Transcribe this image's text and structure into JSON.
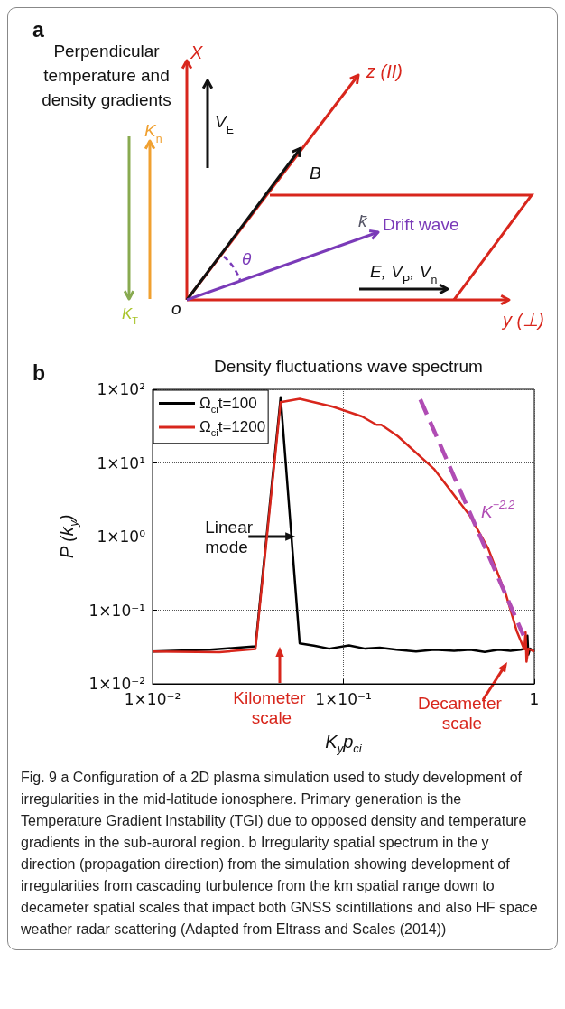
{
  "chart_data": [
    {
      "type": "other",
      "annotations": [
        "a",
        "Perpendicular temperature and density gradients",
        "X",
        "z (II)",
        "V$_{E}$",
        "K$_{n}$",
        "K$_{T}$",
        "B",
        "k̄",
        "Drift wave",
        "θ",
        "E, V$_{P}$, V$_{n}$",
        "o",
        "y (⊥)"
      ]
    },
    {
      "type": "line",
      "title": "Density fluctuations wave spectrum",
      "xlabel": "K$_{y}$p$_{ci}$",
      "ylabel": "P (k$_{y}$)",
      "log": "xy",
      "grid": true,
      "legend": "top left",
      "marker": "none",
      "line_style": "solid",
      "xlim": [
        0.01,
        1
      ],
      "xticks": [
        {
          "value": 0.01,
          "label": "1×10⁻²"
        },
        {
          "value": 0.1,
          "label": "1×10⁻¹"
        },
        1
      ],
      "ylim": [
        0.01,
        100
      ],
      "yticks": [
        {
          "value": 0.01,
          "label": "1×10⁻²"
        },
        {
          "value": 0.1,
          "label": "1×10⁻¹"
        },
        {
          "value": 1,
          "label": "1×10⁰"
        },
        {
          "value": 10,
          "label": "1×10¹"
        },
        {
          "value": 100,
          "label": "1×10²"
        }
      ],
      "series": [
        {
          "name": "Ω$_{ci}$t=100",
          "color": "#000000",
          "x": [
            0.01,
            0.02,
            0.0346,
            0.0469,
            0.059,
            0.07,
            0.0843,
            0.107,
            0.13,
            0.155,
            0.19,
            0.24,
            0.3,
            0.38,
            0.461,
            0.55,
            0.65,
            0.75,
            0.847,
            0.9,
            0.92,
            0.93,
            0.95,
            1
          ],
          "values": [
            0.0274,
            0.029,
            0.0324,
            78,
            0.0355,
            0.033,
            0.03,
            0.0332,
            0.03,
            0.031,
            0.029,
            0.0274,
            0.029,
            0.028,
            0.029,
            0.027,
            0.029,
            0.028,
            0.029,
            0.03,
            0.045,
            0.025,
            0.03,
            0.0274
          ]
        },
        {
          "name": "Ω$_{ci}$t=1200",
          "color": "#d8261c",
          "x": [
            0.01,
            0.0224,
            0.0346,
            0.0469,
            0.059,
            0.0881,
            0.125,
            0.149,
            0.158,
            0.193,
            0.298,
            0.461,
            0.573,
            0.713,
            0.811,
            0.885,
            0.9,
            0.91,
            0.93,
            1
          ],
          "values": [
            0.0274,
            0.0268,
            0.0297,
            67,
            74.5,
            58,
            42.8,
            33,
            33,
            23,
            8.3,
            1.9,
            0.69,
            0.158,
            0.051,
            0.0295,
            0.05,
            0.02,
            0.03,
            0.0274
          ]
        },
        {
          "color": "#b04cb4",
          "line_style": "dashed",
          "x": [
            0.253,
            0.877
          ],
          "values": [
            72.8,
            0.0455
          ]
        }
      ],
      "annotations": [
        "b",
        {
          "text": "Linear mode",
          "x": 0.056,
          "y": 1
        },
        "Kilometer scale",
        "Decameter scale",
        "K$^{−2.2}$",
        "Fig. 9 a Configuration of a 2D plasma simulation used to study development of irregularities in the mid-latitude ionosphere. Primary generation is the Temperature Gradient Instability (TGI) due to opposed density and temperature gradients in the sub-auroral region. b Irregularity spatial spectrum in the y direction (propagation direction) from the simulation showing development of irregularities from cascading turbulence from the km spatial range down to decameter spatial scales that impact both GNSS scintillations and also HF space weather radar scattering (Adapted from Eltrass and Scales (2014))"
      ]
    }
  ]
}
